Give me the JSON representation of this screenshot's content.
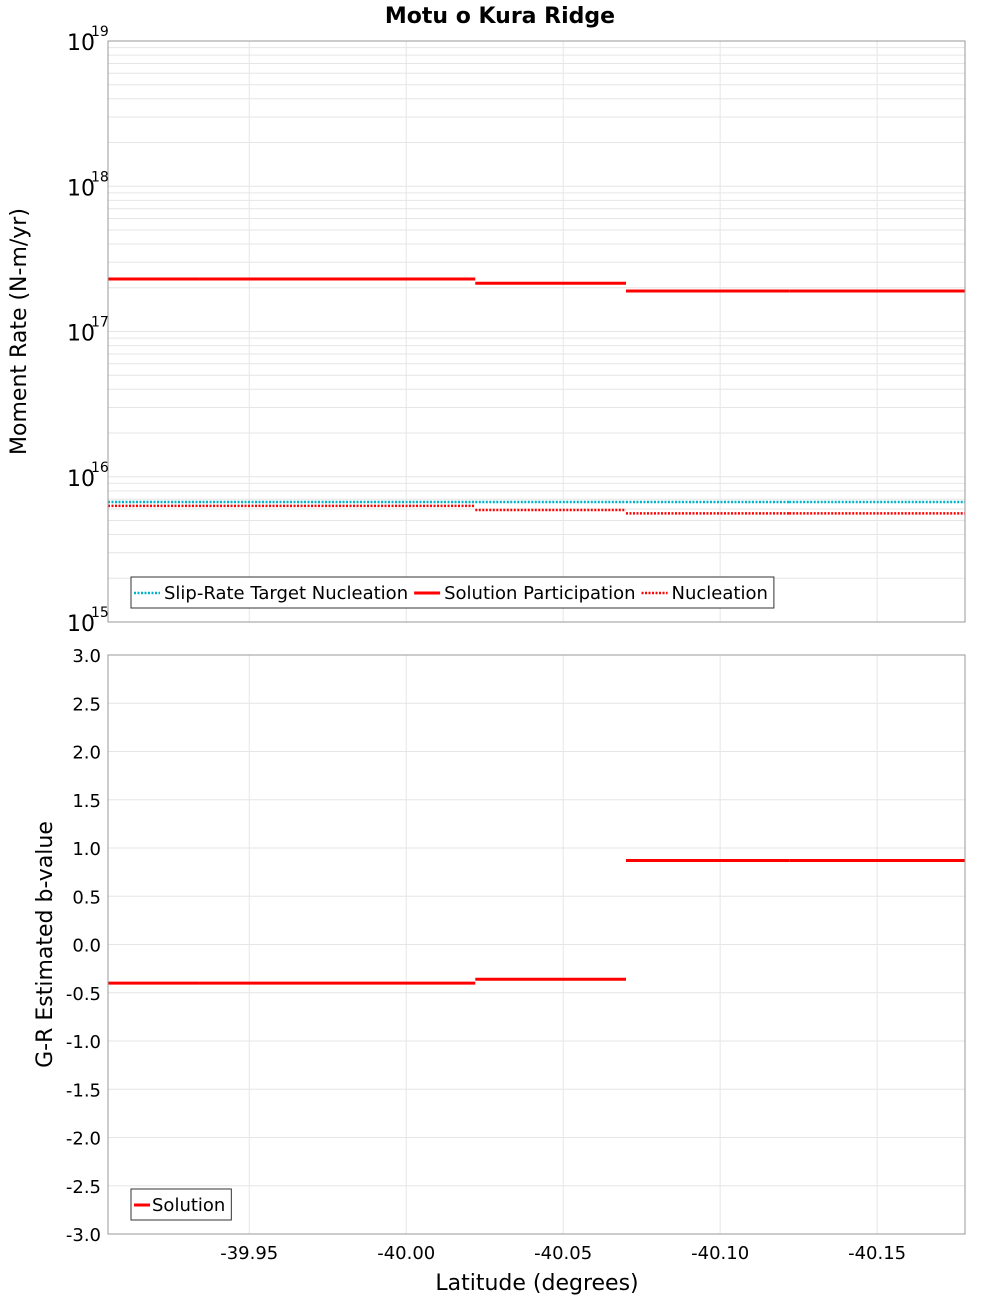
{
  "title": "Motu o Kura Ridge",
  "x_axis_label": "Latitude (degrees)",
  "colors": {
    "cyan": "#00b3c8",
    "red": "#ff0000",
    "grid": "#e6e6e6",
    "frame": "#999999"
  },
  "chart_data": [
    {
      "type": "line",
      "name": "moment-rate",
      "ylabel": "Moment Rate (N-m/yr)",
      "yscale": "log",
      "ylim_exponents": [
        15,
        19
      ],
      "xlim": [
        -39.905,
        -40.178
      ],
      "x_ticks": [
        {
          "value": -39.95,
          "label": "-39.95"
        },
        {
          "value": -40.0,
          "label": "-40.00"
        },
        {
          "value": -40.05,
          "label": "-40.05"
        },
        {
          "value": -40.1,
          "label": "-40.10"
        },
        {
          "value": -40.15,
          "label": "-40.15"
        }
      ],
      "y_ticks": [
        {
          "value": 15,
          "base": "10",
          "exp": "15"
        },
        {
          "value": 16,
          "base": "10",
          "exp": "16"
        },
        {
          "value": 17,
          "base": "10",
          "exp": "17"
        },
        {
          "value": 18,
          "base": "10",
          "exp": "18"
        },
        {
          "value": 19,
          "base": "10",
          "exp": "19"
        }
      ],
      "series": [
        {
          "name": "Slip-Rate Target Nucleation",
          "color": "#00b3c8",
          "style": "dotted",
          "steps": [
            {
              "x0": -39.905,
              "x1": -39.934,
              "y": 6700000000000000.0
            },
            {
              "x0": -39.934,
              "x1": -40.022,
              "y": 6700000000000000.0
            },
            {
              "x0": -40.022,
              "x1": -40.07,
              "y": 6700000000000000.0
            },
            {
              "x0": -40.07,
              "x1": -40.122,
              "y": 6700000000000000.0
            },
            {
              "x0": -40.122,
              "x1": -40.178,
              "y": 6700000000000000.0
            }
          ]
        },
        {
          "name": "Solution Participation",
          "color": "#ff0000",
          "style": "solid",
          "steps": [
            {
              "x0": -39.905,
              "x1": -39.934,
              "y": 2.3e+17
            },
            {
              "x0": -39.934,
              "x1": -40.022,
              "y": 2.3e+17
            },
            {
              "x0": -40.022,
              "x1": -40.07,
              "y": 2.15e+17
            },
            {
              "x0": -40.07,
              "x1": -40.122,
              "y": 1.9e+17
            },
            {
              "x0": -40.122,
              "x1": -40.178,
              "y": 1.9e+17
            }
          ]
        },
        {
          "name": "Nucleation",
          "color": "#ff0000",
          "style": "dotted",
          "steps": [
            {
              "x0": -39.905,
              "x1": -39.934,
              "y": 6300000000000000.0
            },
            {
              "x0": -39.934,
              "x1": -40.022,
              "y": 6300000000000000.0
            },
            {
              "x0": -40.022,
              "x1": -40.07,
              "y": 5900000000000000.0
            },
            {
              "x0": -40.07,
              "x1": -40.122,
              "y": 5600000000000000.0
            },
            {
              "x0": -40.122,
              "x1": -40.178,
              "y": 5600000000000000.0
            }
          ]
        }
      ],
      "legend": [
        "Slip-Rate Target Nucleation",
        "Solution Participation",
        "Nucleation"
      ],
      "legend_position": "bottom-left",
      "grid": true
    },
    {
      "type": "line",
      "name": "b-value",
      "ylabel": "G-R Estimated b-value",
      "yscale": "linear",
      "ylim": [
        -3.0,
        3.0
      ],
      "xlim": [
        -39.905,
        -40.178
      ],
      "y_ticks": [
        {
          "value": 3.0,
          "label": "3.0"
        },
        {
          "value": 2.5,
          "label": "2.5"
        },
        {
          "value": 2.0,
          "label": "2.0"
        },
        {
          "value": 1.5,
          "label": "1.5"
        },
        {
          "value": 1.0,
          "label": "1.0"
        },
        {
          "value": 0.5,
          "label": "0.5"
        },
        {
          "value": 0.0,
          "label": "0.0"
        },
        {
          "value": -0.5,
          "label": "-0.5"
        },
        {
          "value": -1.0,
          "label": "-1.0"
        },
        {
          "value": -1.5,
          "label": "-1.5"
        },
        {
          "value": -2.0,
          "label": "-2.0"
        },
        {
          "value": -2.5,
          "label": "-2.5"
        },
        {
          "value": -3.0,
          "label": "-3.0"
        }
      ],
      "series": [
        {
          "name": "Solution",
          "color": "#ff0000",
          "style": "solid",
          "steps": [
            {
              "x0": -39.905,
              "x1": -39.934,
              "y": -0.4
            },
            {
              "x0": -39.934,
              "x1": -40.022,
              "y": -0.4
            },
            {
              "x0": -40.022,
              "x1": -40.07,
              "y": -0.36
            },
            {
              "x0": -40.07,
              "x1": -40.122,
              "y": 0.87
            },
            {
              "x0": -40.122,
              "x1": -40.178,
              "y": 0.87
            }
          ]
        }
      ],
      "legend": [
        "Solution"
      ],
      "legend_position": "bottom-left",
      "grid": true
    }
  ]
}
